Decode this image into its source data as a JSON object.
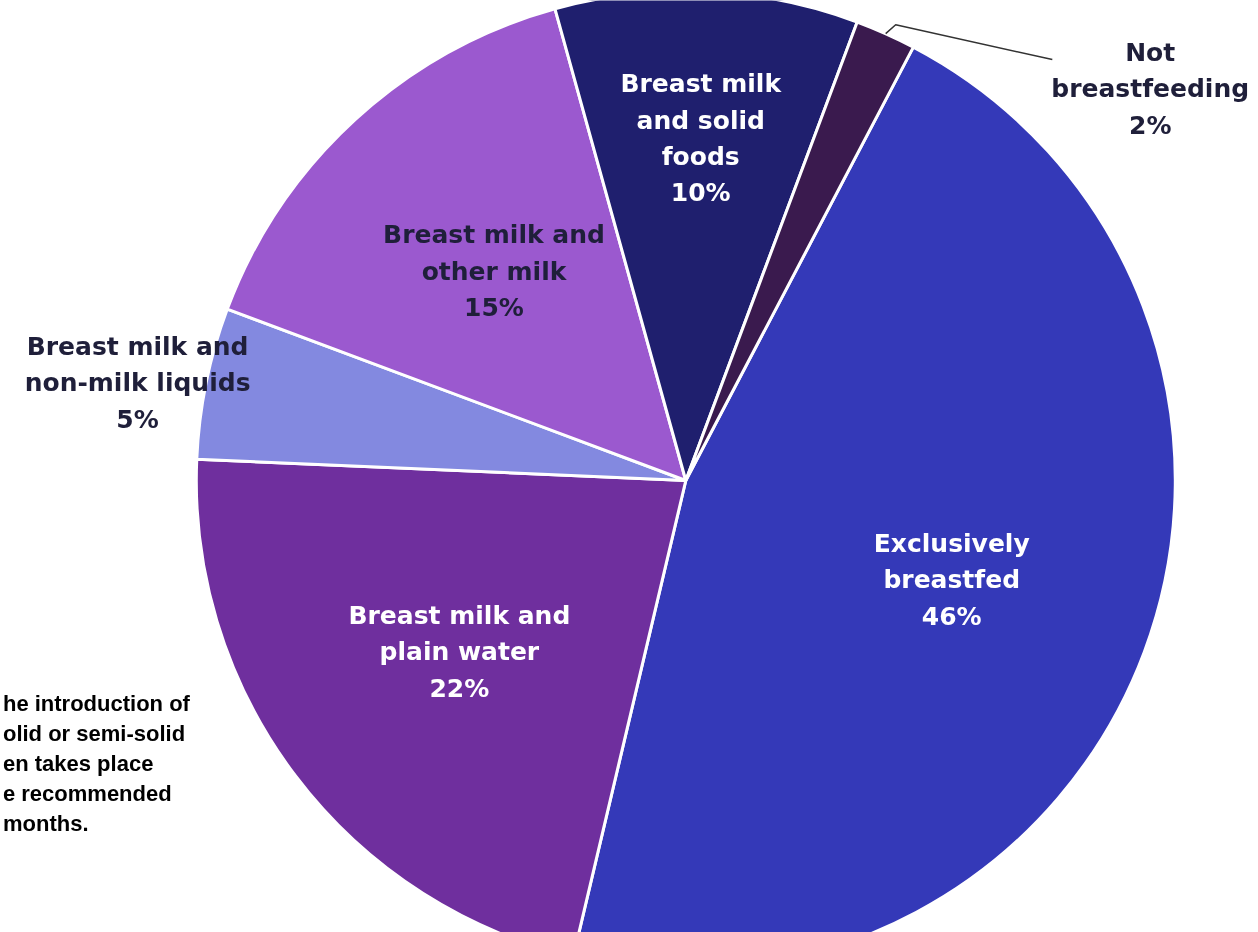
{
  "chart_data": {
    "type": "pie",
    "categories": [
      "Exclusively breastfed",
      "Breast milk and plain water",
      "Breast milk and non-milk liquids",
      "Breast milk and other milk",
      "Breast milk and solid foods",
      "Not breastfeeding"
    ],
    "values": [
      46,
      22,
      5,
      15,
      10,
      2
    ],
    "value_labels": [
      "46%",
      "22%",
      "5%",
      "15%",
      "10%",
      "2%"
    ],
    "colors": [
      "#3439b8",
      "#6f2f9e",
      "#8389e0",
      "#9b59cf",
      "#1f1f6e",
      "#3a1a4e"
    ],
    "annotations": [
      "he introduction of\nolid or semi-solid\nen takes place\ne recommended\nmonths."
    ]
  }
}
